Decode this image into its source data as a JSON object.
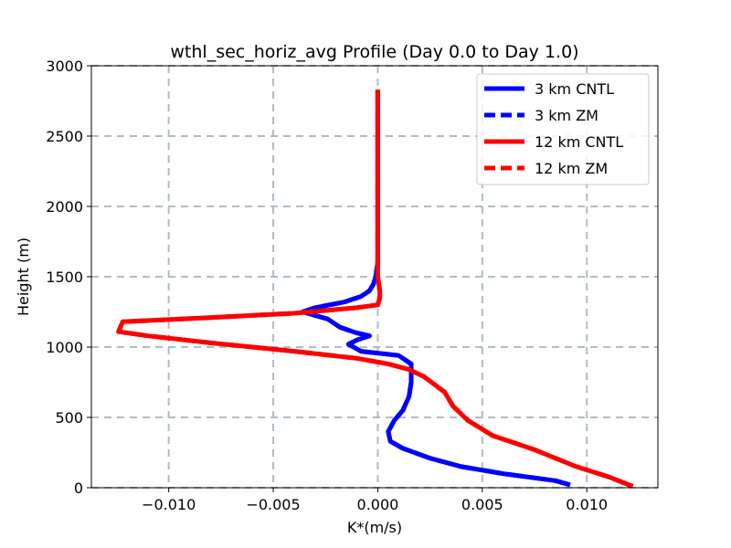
{
  "chart_data": {
    "type": "line",
    "title": "wthl_sec_horiz_avg Profile (Day 0.0 to Day 1.0)",
    "xlabel": "K*(m/s)",
    "ylabel": "Height (m)",
    "xlim": [
      -0.0137,
      0.0134
    ],
    "ylim": [
      0,
      3000
    ],
    "xticks": [
      -0.01,
      -0.005,
      0.0,
      0.005,
      0.01
    ],
    "xtick_labels": [
      "−0.010",
      "−0.005",
      "0.000",
      "0.005",
      "0.010"
    ],
    "yticks": [
      0,
      500,
      1000,
      1500,
      2000,
      2500,
      3000
    ],
    "ytick_labels": [
      "0",
      "500",
      "1000",
      "1500",
      "2000",
      "2500",
      "3000"
    ],
    "grid": true,
    "legend_position": "upper right",
    "series": [
      {
        "name": "3 km CNTL",
        "color": "#0000ff",
        "style": "solid",
        "points": [
          [
            0.0092,
            20
          ],
          [
            0.0085,
            50
          ],
          [
            0.006,
            100
          ],
          [
            0.004,
            150
          ],
          [
            0.0025,
            210
          ],
          [
            0.0012,
            280
          ],
          [
            0.0006,
            330
          ],
          [
            0.0005,
            400
          ],
          [
            0.0008,
            480
          ],
          [
            0.0012,
            550
          ],
          [
            0.0015,
            650
          ],
          [
            0.0016,
            750
          ],
          [
            0.0016,
            880
          ],
          [
            0.001,
            940
          ],
          [
            -0.0008,
            970
          ],
          [
            -0.0014,
            1020
          ],
          [
            -0.001,
            1050
          ],
          [
            -0.0004,
            1080
          ],
          [
            -0.001,
            1100
          ],
          [
            -0.0018,
            1140
          ],
          [
            -0.0024,
            1200
          ],
          [
            -0.0036,
            1250
          ],
          [
            -0.003,
            1280
          ],
          [
            -0.0016,
            1320
          ],
          [
            -0.0008,
            1360
          ],
          [
            -0.0004,
            1400
          ],
          [
            -0.0002,
            1450
          ],
          [
            -0.0001,
            1500
          ],
          [
            0.0,
            1600
          ],
          [
            0.0,
            2000
          ],
          [
            0.0,
            2500
          ],
          [
            0.0,
            2830
          ]
        ]
      },
      {
        "name": "3 km ZM",
        "color": "#0000ff",
        "style": "dashed",
        "points": [
          [
            0.0092,
            20
          ],
          [
            0.0085,
            50
          ],
          [
            0.006,
            100
          ],
          [
            0.004,
            150
          ],
          [
            0.0025,
            210
          ],
          [
            0.0012,
            280
          ],
          [
            0.0006,
            330
          ],
          [
            0.0005,
            400
          ],
          [
            0.0008,
            480
          ],
          [
            0.0012,
            550
          ],
          [
            0.0015,
            650
          ],
          [
            0.0016,
            750
          ],
          [
            0.0016,
            880
          ],
          [
            0.001,
            940
          ],
          [
            -0.0008,
            970
          ],
          [
            -0.0014,
            1020
          ],
          [
            -0.001,
            1050
          ],
          [
            -0.0004,
            1080
          ],
          [
            -0.001,
            1100
          ],
          [
            -0.0018,
            1140
          ],
          [
            -0.0024,
            1200
          ],
          [
            -0.0036,
            1250
          ],
          [
            -0.003,
            1280
          ],
          [
            -0.0016,
            1320
          ],
          [
            -0.0008,
            1360
          ],
          [
            -0.0004,
            1400
          ],
          [
            -0.0002,
            1450
          ],
          [
            -0.0001,
            1500
          ],
          [
            0.0,
            1600
          ],
          [
            0.0,
            2000
          ],
          [
            0.0,
            2500
          ],
          [
            0.0,
            2830
          ]
        ]
      },
      {
        "name": "12 km CNTL",
        "color": "#ff0000",
        "style": "solid",
        "points": [
          [
            0.0122,
            10
          ],
          [
            0.011,
            80
          ],
          [
            0.0095,
            150
          ],
          [
            0.0075,
            270
          ],
          [
            0.0055,
            370
          ],
          [
            0.0043,
            480
          ],
          [
            0.0036,
            580
          ],
          [
            0.0032,
            680
          ],
          [
            0.0022,
            790
          ],
          [
            0.0015,
            840
          ],
          [
            0.0005,
            880
          ],
          [
            -0.001,
            920
          ],
          [
            -0.004,
            970
          ],
          [
            -0.008,
            1030
          ],
          [
            -0.011,
            1080
          ],
          [
            -0.0124,
            1110
          ],
          [
            -0.0122,
            1180
          ],
          [
            -0.008,
            1210
          ],
          [
            -0.004,
            1240
          ],
          [
            -0.001,
            1280
          ],
          [
            0.0,
            1300
          ],
          [
            0.0001,
            1350
          ],
          [
            0.0001,
            1400
          ],
          [
            0.0,
            1500
          ],
          [
            0.0,
            2000
          ],
          [
            0.0,
            2500
          ],
          [
            0.0,
            2830
          ]
        ]
      },
      {
        "name": "12 km ZM",
        "color": "#ff0000",
        "style": "dashed",
        "points": [
          [
            0.0122,
            10
          ],
          [
            0.011,
            80
          ],
          [
            0.0095,
            150
          ],
          [
            0.0075,
            270
          ],
          [
            0.0055,
            370
          ],
          [
            0.0043,
            480
          ],
          [
            0.0036,
            580
          ],
          [
            0.0032,
            680
          ],
          [
            0.0022,
            790
          ],
          [
            0.0015,
            840
          ],
          [
            0.0005,
            880
          ],
          [
            -0.001,
            920
          ],
          [
            -0.004,
            970
          ],
          [
            -0.008,
            1030
          ],
          [
            -0.011,
            1080
          ],
          [
            -0.0124,
            1110
          ],
          [
            -0.0122,
            1180
          ],
          [
            -0.008,
            1210
          ],
          [
            -0.004,
            1240
          ],
          [
            -0.001,
            1280
          ],
          [
            0.0,
            1300
          ],
          [
            0.0001,
            1350
          ],
          [
            0.0001,
            1400
          ],
          [
            0.0,
            1500
          ],
          [
            0.0,
            2000
          ],
          [
            0.0,
            2500
          ],
          [
            0.0,
            2830
          ]
        ]
      }
    ]
  }
}
